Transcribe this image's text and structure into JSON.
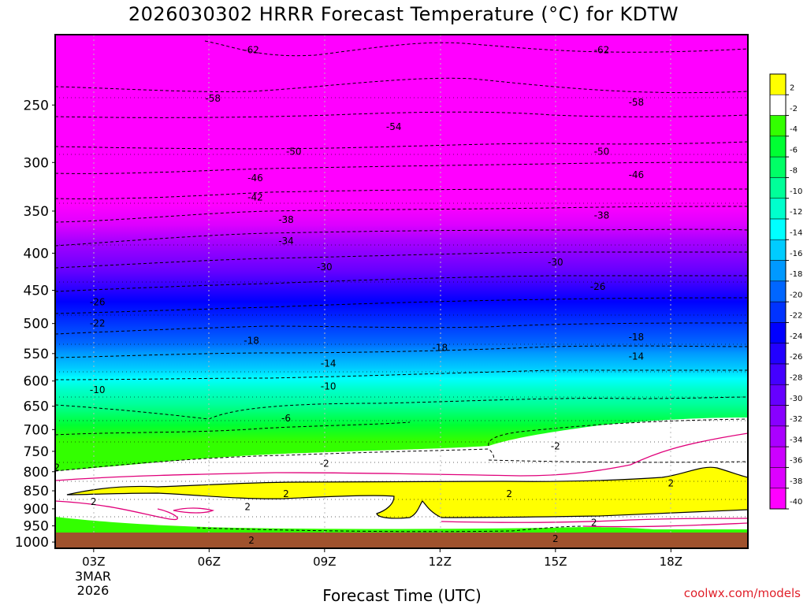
{
  "chart_data": {
    "type": "contour",
    "title": "2026030302 HRRR Forecast Temperature (°C) for KDTW",
    "xlabel": "Forecast Time (UTC)",
    "ylabel": "",
    "credit": "coolwx.com/models",
    "date_label": [
      "3MAR",
      "2026"
    ],
    "x_ticks": [
      "03Z",
      "06Z",
      "09Z",
      "12Z",
      "15Z",
      "18Z"
    ],
    "x_tick_hours": [
      3,
      6,
      9,
      12,
      15,
      18
    ],
    "xlim": [
      2,
      20
    ],
    "y_ticks": [
      250,
      300,
      350,
      400,
      450,
      500,
      550,
      600,
      650,
      700,
      750,
      800,
      850,
      900,
      950,
      1000
    ],
    "ylim": [
      1020,
      200
    ],
    "colorbar": {
      "labels": [
        "2",
        "-2",
        "-4",
        "-6",
        "-8",
        "-10",
        "-12",
        "-14",
        "-16",
        "-18",
        "-20",
        "-22",
        "-24",
        "-26",
        "-28",
        "-30",
        "-32",
        "-34",
        "-36",
        "-38",
        "-40"
      ],
      "colors": [
        "#ffff00",
        "#ffffff",
        "#33ff00",
        "#00ff33",
        "#00ff66",
        "#00ff99",
        "#00ffcc",
        "#00ffff",
        "#00ccff",
        "#0099ff",
        "#0066ff",
        "#0033ff",
        "#0000ff",
        "#2200ff",
        "#4400ff",
        "#6600ff",
        "#8800ff",
        "#aa00ff",
        "#cc00ff",
        "#dd00ff",
        "#ff00ff"
      ]
    },
    "surface_color": "#a0522d",
    "labeled_isotherms": [
      {
        "value": -62,
        "points": [
          [
            7.1,
            210
          ],
          [
            16.2,
            210
          ]
        ]
      },
      {
        "value": -58,
        "points": [
          [
            6.1,
            245
          ],
          [
            17.1,
            248
          ]
        ]
      },
      {
        "value": -54,
        "points": [
          [
            10.8,
            268
          ]
        ]
      },
      {
        "value": -50,
        "points": [
          [
            8.2,
            290
          ],
          [
            16.2,
            290
          ]
        ]
      },
      {
        "value": -46,
        "points": [
          [
            7.2,
            315
          ],
          [
            17.1,
            312
          ]
        ]
      },
      {
        "value": -42,
        "points": [
          [
            7.2,
            335
          ]
        ]
      },
      {
        "value": -38,
        "points": [
          [
            8.0,
            360
          ],
          [
            16.2,
            355
          ]
        ]
      },
      {
        "value": -34,
        "points": [
          [
            8.0,
            385
          ]
        ]
      },
      {
        "value": -30,
        "points": [
          [
            9.0,
            418
          ],
          [
            15.0,
            412
          ]
        ]
      },
      {
        "value": -26,
        "points": [
          [
            3.1,
            467
          ],
          [
            16.1,
            445
          ]
        ]
      },
      {
        "value": -22,
        "points": [
          [
            3.1,
            500
          ]
        ]
      },
      {
        "value": -18,
        "points": [
          [
            7.1,
            528
          ],
          [
            12.0,
            540
          ],
          [
            17.1,
            522
          ]
        ]
      },
      {
        "value": -14,
        "points": [
          [
            9.1,
            568
          ],
          [
            17.1,
            555
          ]
        ]
      },
      {
        "value": -10,
        "points": [
          [
            3.1,
            617
          ],
          [
            9.1,
            610
          ]
        ]
      },
      {
        "value": -6,
        "points": [
          [
            8.0,
            675
          ]
        ]
      },
      {
        "value": -2,
        "points": [
          [
            2.0,
            790
          ],
          [
            9.0,
            780
          ],
          [
            15.0,
            738
          ]
        ]
      },
      {
        "value": 2,
        "points": [
          [
            3.0,
            880
          ],
          [
            8.0,
            858
          ],
          [
            13.8,
            858
          ],
          [
            18.0,
            830
          ],
          [
            7.0,
            895
          ],
          [
            16.0,
            940
          ],
          [
            7.1,
            995
          ],
          [
            15.0,
            990
          ]
        ]
      }
    ]
  }
}
